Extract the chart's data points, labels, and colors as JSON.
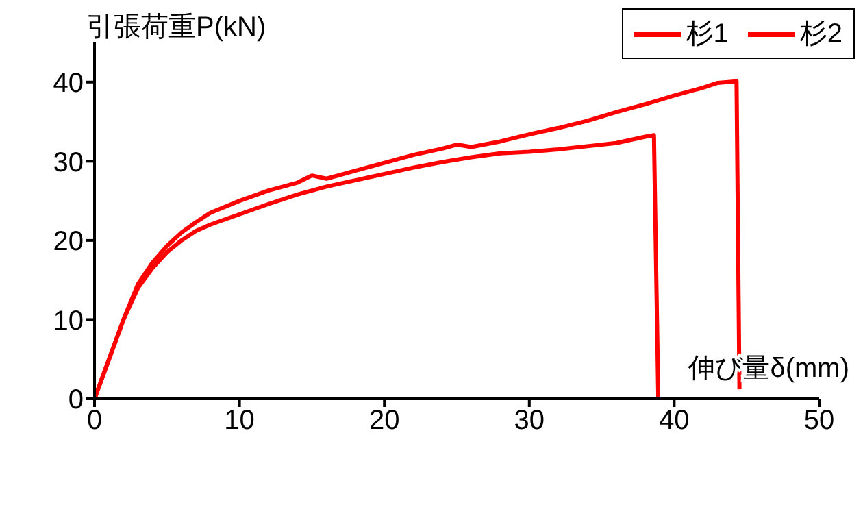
{
  "chart_data": {
    "type": "line",
    "ylabel": "引張荷重P(kN)",
    "xlabel": "伸び量δ(mm)",
    "xlim": [
      0,
      50
    ],
    "xticks": [
      0,
      10,
      20,
      30,
      40,
      50
    ],
    "ylim": [
      0,
      45
    ],
    "yticks": [
      0,
      10,
      20,
      30,
      40
    ],
    "grid": false,
    "legend": "top right",
    "marker": "none",
    "line_style": "solid",
    "series": [
      {
        "name": "杉1",
        "color": "#ff0000",
        "x": [
          0,
          1,
          2,
          3,
          4,
          5,
          6,
          7,
          8,
          10,
          12,
          14,
          16,
          18,
          20,
          22,
          24,
          26,
          28,
          30,
          32,
          34,
          36,
          38,
          38.6,
          38.9
        ],
        "values": [
          0,
          5,
          10,
          14,
          16.5,
          18.5,
          20,
          21.2,
          22,
          23.3,
          24.6,
          25.8,
          26.8,
          27.6,
          28.4,
          29.2,
          29.9,
          30.5,
          31,
          31.2,
          31.5,
          31.9,
          32.3,
          33.1,
          33.3,
          0
        ]
      },
      {
        "name": "杉2",
        "color": "#ff0000",
        "x": [
          0,
          1,
          2,
          3,
          4,
          5,
          6,
          7,
          8,
          10,
          12,
          14,
          15,
          16,
          18,
          20,
          22,
          24,
          25,
          26,
          28,
          30,
          32,
          34,
          36,
          38,
          40,
          42,
          43,
          44.3,
          44.5
        ],
        "values": [
          0,
          5,
          10,
          14.5,
          17.2,
          19.3,
          21,
          22.3,
          23.5,
          25,
          26.3,
          27.3,
          28.2,
          27.8,
          28.8,
          29.8,
          30.8,
          31.6,
          32.1,
          31.8,
          32.5,
          33.4,
          34.2,
          35.1,
          36.2,
          37.2,
          38.3,
          39.3,
          39.9,
          40.1,
          1.2
        ]
      }
    ]
  }
}
